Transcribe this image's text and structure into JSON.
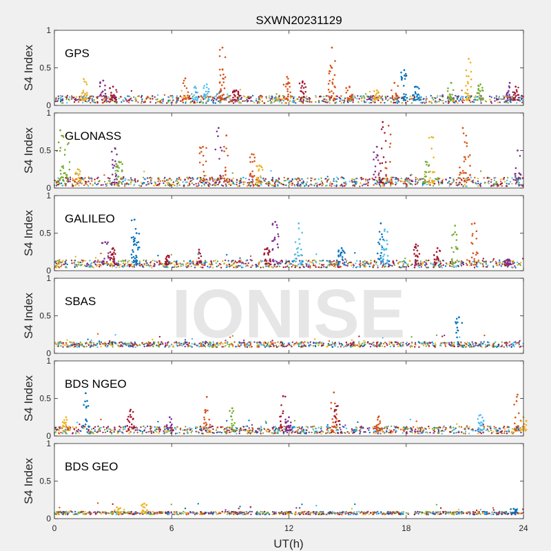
{
  "figure": {
    "title": "SXWN20231129",
    "watermark": "IONISE",
    "xlabel": "UT(h)",
    "ylabel": "S4 Index"
  },
  "chart_data": {
    "type": "scatter",
    "title": "SXWN20231129",
    "xlabel": "UT(h)",
    "ylabel": "S4 Index",
    "xlim": [
      0,
      24
    ],
    "ylim": [
      0,
      1
    ],
    "xticks": [
      0,
      6,
      12,
      18,
      24
    ],
    "yticks": [
      0,
      0.5,
      1
    ],
    "ytick_labels": [
      "0",
      "0.5",
      "1"
    ],
    "grid": false,
    "colors": [
      "#0072bd",
      "#d95319",
      "#edb120",
      "#7e2f8e",
      "#77ac30",
      "#4dbeee",
      "#a2142f"
    ],
    "panels": [
      {
        "label": "GPS",
        "baseline": 0.07,
        "noise": 0.05,
        "spikes": [
          {
            "x": 1.5,
            "peak": 0.35,
            "color": 2
          },
          {
            "x": 2.5,
            "peak": 0.33,
            "color": 3
          },
          {
            "x": 3.0,
            "peak": 0.25,
            "color": 6
          },
          {
            "x": 6.7,
            "peak": 0.36,
            "color": 1
          },
          {
            "x": 7.2,
            "peak": 0.25,
            "color": 5
          },
          {
            "x": 7.8,
            "peak": 0.28,
            "color": 5
          },
          {
            "x": 8.6,
            "peak": 0.77,
            "color": 1
          },
          {
            "x": 8.6,
            "peak": 0.48,
            "color": 1
          },
          {
            "x": 9.3,
            "peak": 0.2,
            "color": 6
          },
          {
            "x": 11.9,
            "peak": 0.38,
            "color": 1
          },
          {
            "x": 12.7,
            "peak": 0.32,
            "color": 6
          },
          {
            "x": 14.2,
            "peak": 0.77,
            "color": 1
          },
          {
            "x": 14.2,
            "peak": 0.5,
            "color": 1
          },
          {
            "x": 15.1,
            "peak": 0.25,
            "color": 1
          },
          {
            "x": 16.5,
            "peak": 0.2,
            "color": 2
          },
          {
            "x": 17.4,
            "peak": 0.3,
            "color": 1
          },
          {
            "x": 17.9,
            "peak": 0.47,
            "color": 0
          },
          {
            "x": 18.5,
            "peak": 0.25,
            "color": 0
          },
          {
            "x": 20.3,
            "peak": 0.3,
            "color": 4
          },
          {
            "x": 21.2,
            "peak": 0.62,
            "color": 2
          },
          {
            "x": 21.8,
            "peak": 0.28,
            "color": 4
          },
          {
            "x": 23.3,
            "peak": 0.3,
            "color": 3
          },
          {
            "x": 23.6,
            "peak": 0.25,
            "color": 6
          }
        ]
      },
      {
        "label": "GLONASS",
        "baseline": 0.07,
        "noise": 0.06,
        "spikes": [
          {
            "x": 0.3,
            "peak": 0.77,
            "color": 4
          },
          {
            "x": 0.6,
            "peak": 0.7,
            "color": 4
          },
          {
            "x": 1.2,
            "peak": 0.25,
            "color": 2
          },
          {
            "x": 3.1,
            "peak": 0.53,
            "color": 3
          },
          {
            "x": 3.3,
            "peak": 0.35,
            "color": 4
          },
          {
            "x": 7.6,
            "peak": 0.55,
            "color": 1
          },
          {
            "x": 8.4,
            "peak": 0.8,
            "color": 3
          },
          {
            "x": 8.8,
            "peak": 0.7,
            "color": 1
          },
          {
            "x": 10.1,
            "peak": 0.45,
            "color": 1
          },
          {
            "x": 10.5,
            "peak": 0.3,
            "color": 2
          },
          {
            "x": 16.8,
            "peak": 0.88,
            "color": 6
          },
          {
            "x": 17.1,
            "peak": 0.83,
            "color": 1
          },
          {
            "x": 16.5,
            "peak": 0.55,
            "color": 3
          },
          {
            "x": 19.3,
            "peak": 0.68,
            "color": 2
          },
          {
            "x": 19.0,
            "peak": 0.35,
            "color": 4
          },
          {
            "x": 20.9,
            "peak": 0.8,
            "color": 1
          },
          {
            "x": 21.1,
            "peak": 0.6,
            "color": 1
          },
          {
            "x": 23.7,
            "peak": 0.5,
            "color": 3
          }
        ]
      },
      {
        "label": "GALILEO",
        "baseline": 0.08,
        "noise": 0.05,
        "spikes": [
          {
            "x": 2.6,
            "peak": 0.38,
            "color": 3
          },
          {
            "x": 3.0,
            "peak": 0.3,
            "color": 6
          },
          {
            "x": 4.1,
            "peak": 0.68,
            "color": 0
          },
          {
            "x": 4.2,
            "peak": 0.5,
            "color": 0
          },
          {
            "x": 5.8,
            "peak": 0.2,
            "color": 6
          },
          {
            "x": 7.4,
            "peak": 0.28,
            "color": 6
          },
          {
            "x": 10.9,
            "peak": 0.3,
            "color": 6
          },
          {
            "x": 11.3,
            "peak": 0.65,
            "color": 3
          },
          {
            "x": 12.5,
            "peak": 0.63,
            "color": 5
          },
          {
            "x": 14.7,
            "peak": 0.3,
            "color": 0
          },
          {
            "x": 16.7,
            "peak": 0.63,
            "color": 0
          },
          {
            "x": 16.9,
            "peak": 0.55,
            "color": 5
          },
          {
            "x": 18.5,
            "peak": 0.35,
            "color": 6
          },
          {
            "x": 19.6,
            "peak": 0.3,
            "color": 6
          },
          {
            "x": 20.5,
            "peak": 0.6,
            "color": 4
          },
          {
            "x": 21.5,
            "peak": 0.63,
            "color": 1
          },
          {
            "x": 23.2,
            "peak": 0.15,
            "color": 3
          }
        ]
      },
      {
        "label": "SBAS",
        "baseline": 0.11,
        "noise": 0.035,
        "spikes": [
          {
            "x": 20.7,
            "peak": 0.48,
            "color": 0
          }
        ]
      },
      {
        "label": "BDS NGEO",
        "baseline": 0.07,
        "noise": 0.05,
        "spikes": [
          {
            "x": 0.6,
            "peak": 0.25,
            "color": 2
          },
          {
            "x": 1.6,
            "peak": 0.57,
            "color": 0
          },
          {
            "x": 3.9,
            "peak": 0.35,
            "color": 6
          },
          {
            "x": 5.9,
            "peak": 0.25,
            "color": 3
          },
          {
            "x": 7.8,
            "peak": 0.52,
            "color": 1
          },
          {
            "x": 9.1,
            "peak": 0.37,
            "color": 4
          },
          {
            "x": 11.7,
            "peak": 0.53,
            "color": 6
          },
          {
            "x": 12.0,
            "peak": 0.25,
            "color": 3
          },
          {
            "x": 14.3,
            "peak": 0.58,
            "color": 1
          },
          {
            "x": 14.5,
            "peak": 0.4,
            "color": 6
          },
          {
            "x": 16.6,
            "peak": 0.26,
            "color": 1
          },
          {
            "x": 21.8,
            "peak": 0.28,
            "color": 5
          },
          {
            "x": 23.7,
            "peak": 0.55,
            "color": 1
          },
          {
            "x": 24.0,
            "peak": 0.25,
            "color": 2
          }
        ]
      },
      {
        "label": "BDS GEO",
        "baseline": 0.07,
        "noise": 0.02,
        "spikes": [
          {
            "x": 4.6,
            "peak": 0.2,
            "color": 2
          },
          {
            "x": 3.2,
            "peak": 0.15,
            "color": 2
          },
          {
            "x": 23.5,
            "peak": 0.13,
            "color": 0
          }
        ]
      }
    ]
  }
}
